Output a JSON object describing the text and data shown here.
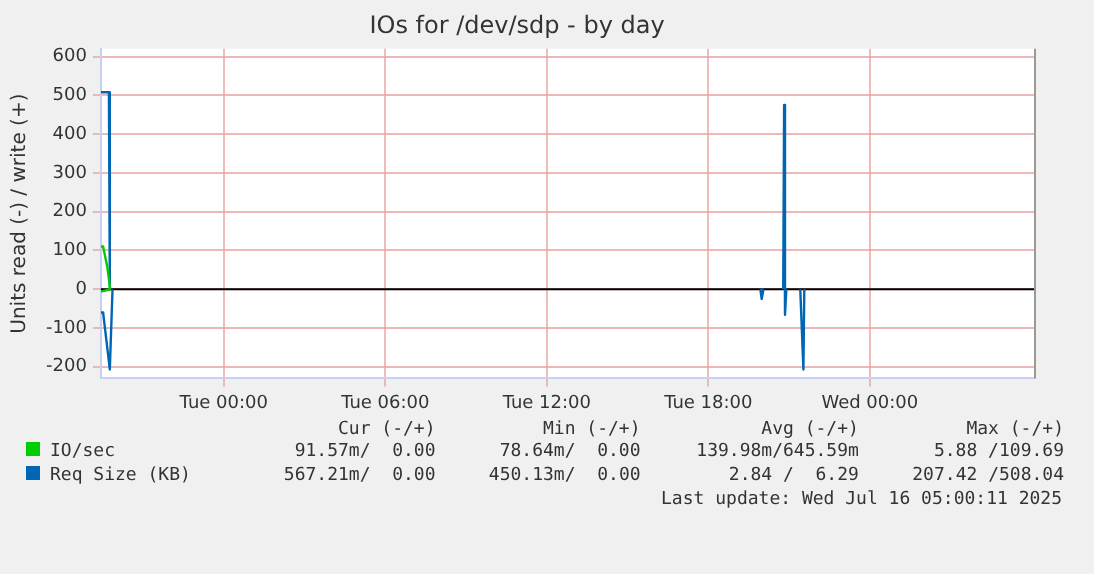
{
  "chart_data": {
    "type": "line",
    "title": "IOs for /dev/sdp - by day",
    "ylabel": "Units read (-) / write (+)",
    "xlim": [
      "2025-07-14T19:26",
      "2025-07-16T06:06"
    ],
    "xticks": [
      {
        "value": "2025-07-15T00:00",
        "label": "Tue 00:00"
      },
      {
        "value": "2025-07-15T06:00",
        "label": "Tue 06:00"
      },
      {
        "value": "2025-07-15T12:00",
        "label": "Tue 12:00"
      },
      {
        "value": "2025-07-15T18:00",
        "label": "Tue 18:00"
      },
      {
        "value": "2025-07-16T00:00",
        "label": "Wed 00:00"
      }
    ],
    "ylim": [
      -230,
      620
    ],
    "yticks": [
      -200,
      -100,
      0,
      100,
      200,
      300,
      400,
      500,
      600
    ],
    "grid": true,
    "legend": "bottom left",
    "marker": "none",
    "line_style": "solid",
    "ref_lines": [
      {
        "axis": "y",
        "value": 0,
        "color": "#000000"
      }
    ],
    "series": [
      {
        "name": "IO/sec",
        "color": "#00cc00",
        "x": [
          "2025-07-14T19:26",
          "2025-07-14T19:31",
          "2025-07-14T19:40",
          "2025-07-14T19:47"
        ],
        "values": [
          110,
          110,
          60,
          0
        ]
      },
      {
        "color": "#00cc00",
        "x": [
          "2025-07-14T19:26",
          "2025-07-14T19:47"
        ],
        "values": [
          -6,
          0
        ]
      },
      {
        "name": "Req Size (KB)",
        "color": "#0066b3",
        "x": [
          "2025-07-14T19:26",
          "2025-07-14T19:44",
          "2025-07-14T19:46",
          "2025-07-14T20:00",
          "2025-07-15T19:56",
          "2025-07-15T19:59",
          "2025-07-15T20:03",
          "2025-07-15T20:20",
          "2025-07-15T20:47",
          "2025-07-15T20:49",
          "2025-07-15T20:51",
          "2025-07-15T20:54",
          "2025-07-15T21:10",
          "2025-07-15T21:25",
          "2025-07-15T21:32",
          "2025-07-15T21:34"
        ],
        "values": [
          508,
          508,
          0,
          null,
          0,
          -25,
          0,
          null,
          0,
          475,
          -66,
          0,
          null,
          0,
          -207,
          0
        ]
      },
      {
        "color": "#0066b3",
        "x": [
          "2025-07-14T19:26",
          "2025-07-14T19:31",
          "2025-07-14T19:46",
          "2025-07-14T19:52"
        ],
        "values": [
          -60,
          -60,
          -207,
          0
        ]
      }
    ],
    "annotations": [
      "Cur (-/+)",
      "Min (-/+)",
      "Avg (-/+)",
      "Max (-/+)",
      "91.57m/  0.00",
      "78.64m/  0.00",
      "139.98m/645.59m",
      "5.88 /109.69",
      "567.21m/  0.00",
      "450.13m/  0.00",
      "2.84 /  6.29",
      "207.42 /508.04",
      "Last update: Wed Jul 16 05:00:11 2025"
    ]
  }
}
